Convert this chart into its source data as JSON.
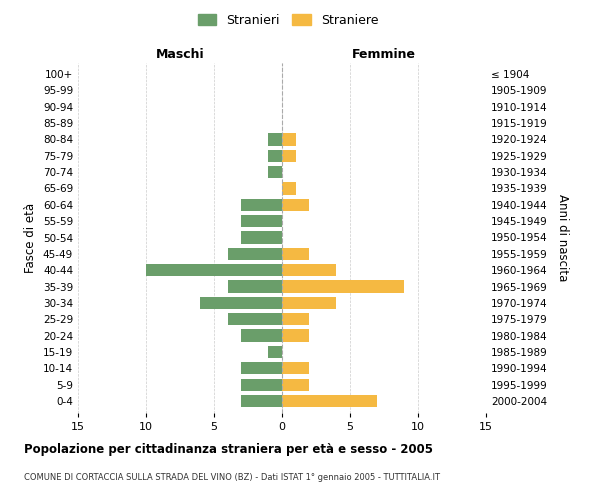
{
  "age_groups": [
    "0-4",
    "5-9",
    "10-14",
    "15-19",
    "20-24",
    "25-29",
    "30-34",
    "35-39",
    "40-44",
    "45-49",
    "50-54",
    "55-59",
    "60-64",
    "65-69",
    "70-74",
    "75-79",
    "80-84",
    "85-89",
    "90-94",
    "95-99",
    "100+"
  ],
  "birth_years": [
    "2000-2004",
    "1995-1999",
    "1990-1994",
    "1985-1989",
    "1980-1984",
    "1975-1979",
    "1970-1974",
    "1965-1969",
    "1960-1964",
    "1955-1959",
    "1950-1954",
    "1945-1949",
    "1940-1944",
    "1935-1939",
    "1930-1934",
    "1925-1929",
    "1920-1924",
    "1915-1919",
    "1910-1914",
    "1905-1909",
    "≤ 1904"
  ],
  "males": [
    3,
    3,
    3,
    1,
    3,
    4,
    6,
    4,
    10,
    4,
    3,
    3,
    3,
    0,
    1,
    1,
    1,
    0,
    0,
    0,
    0
  ],
  "females": [
    7,
    2,
    2,
    0,
    2,
    2,
    4,
    9,
    4,
    2,
    0,
    0,
    2,
    1,
    0,
    1,
    1,
    0,
    0,
    0,
    0
  ],
  "male_color": "#6a9e6a",
  "female_color": "#f5b942",
  "title": "Popolazione per cittadinanza straniera per età e sesso - 2005",
  "subtitle": "COMUNE DI CORTACCIA SULLA STRADA DEL VINO (BZ) - Dati ISTAT 1° gennaio 2005 - TUTTITALIA.IT",
  "xlabel_left": "Maschi",
  "xlabel_right": "Femmine",
  "ylabel_left": "Fasce di età",
  "ylabel_right": "Anni di nascita",
  "legend_male": "Stranieri",
  "legend_female": "Straniere",
  "xlim": 15,
  "background_color": "#ffffff",
  "grid_color": "#cccccc"
}
